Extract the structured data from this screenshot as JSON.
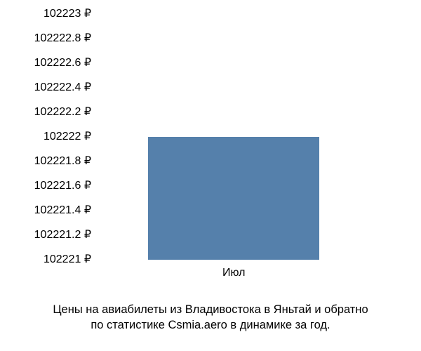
{
  "chart": {
    "type": "bar",
    "background_color": "#ffffff",
    "bar_color": "#5580ab",
    "text_color": "#000000",
    "label_fontsize": 16,
    "caption_fontsize": 16.5,
    "y_axis": {
      "min": 102221,
      "max": 102223,
      "tick_step": 0.2,
      "ticks": [
        {
          "v": 102223,
          "label": "102223 ₽"
        },
        {
          "v": 102222.8,
          "label": "102222.8 ₽"
        },
        {
          "v": 102222.6,
          "label": "102222.6 ₽"
        },
        {
          "v": 102222.4,
          "label": "102222.4 ₽"
        },
        {
          "v": 102222.2,
          "label": "102222.2 ₽"
        },
        {
          "v": 102222,
          "label": "102222 ₽"
        },
        {
          "v": 102221.8,
          "label": "102221.8 ₽"
        },
        {
          "v": 102221.6,
          "label": "102221.6 ₽"
        },
        {
          "v": 102221.4,
          "label": "102221.4 ₽"
        },
        {
          "v": 102221.2,
          "label": "102221.2 ₽"
        },
        {
          "v": 102221,
          "label": "102221 ₽"
        }
      ]
    },
    "series": [
      {
        "category": "Июл",
        "value": 102222,
        "bar_width_frac": 0.58,
        "bar_center_frac": 0.46
      }
    ],
    "caption_line1": "Цены на авиабилеты из Владивостока в Яньтай и обратно",
    "caption_line2": "по статистике Csmia.aero в динамике за год."
  }
}
